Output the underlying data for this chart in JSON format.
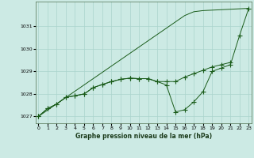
{
  "xlabel": "Graphe pression niveau de la mer (hPa)",
  "background_color": "#cceae4",
  "grid_color": "#aad4cc",
  "line_color": "#1a5c1a",
  "ylim": [
    1026.7,
    1032.1
  ],
  "yticks": [
    1027,
    1028,
    1029,
    1030,
    1031
  ],
  "xlim": [
    -0.3,
    23.3
  ],
  "series_straight": [
    1027.0,
    1027.28,
    1027.56,
    1027.84,
    1028.12,
    1028.4,
    1028.68,
    1028.96,
    1029.24,
    1029.52,
    1029.8,
    1030.08,
    1030.36,
    1030.64,
    1030.92,
    1031.2,
    1031.48,
    1031.65,
    1031.7,
    1031.72,
    1031.74,
    1031.76,
    1031.78,
    1031.8
  ],
  "series_mid": [
    1027.0,
    1027.35,
    1027.55,
    1027.85,
    1027.92,
    1028.0,
    1028.28,
    1028.42,
    1028.55,
    1028.65,
    1028.7,
    1028.68,
    1028.68,
    1028.55,
    1028.55,
    1028.55,
    1028.75,
    1028.9,
    1029.05,
    1029.2,
    1029.3,
    1029.4,
    null,
    null
  ],
  "series_dip": [
    1027.0,
    1027.35,
    1027.55,
    1027.85,
    1027.92,
    1028.0,
    1028.28,
    1028.42,
    1028.55,
    1028.65,
    1028.7,
    1028.68,
    1028.68,
    1028.55,
    1028.4,
    1027.2,
    1027.3,
    1027.65,
    1028.1,
    1029.0,
    1029.15,
    1029.3,
    1030.6,
    1031.8
  ],
  "marker_size": 2.0
}
